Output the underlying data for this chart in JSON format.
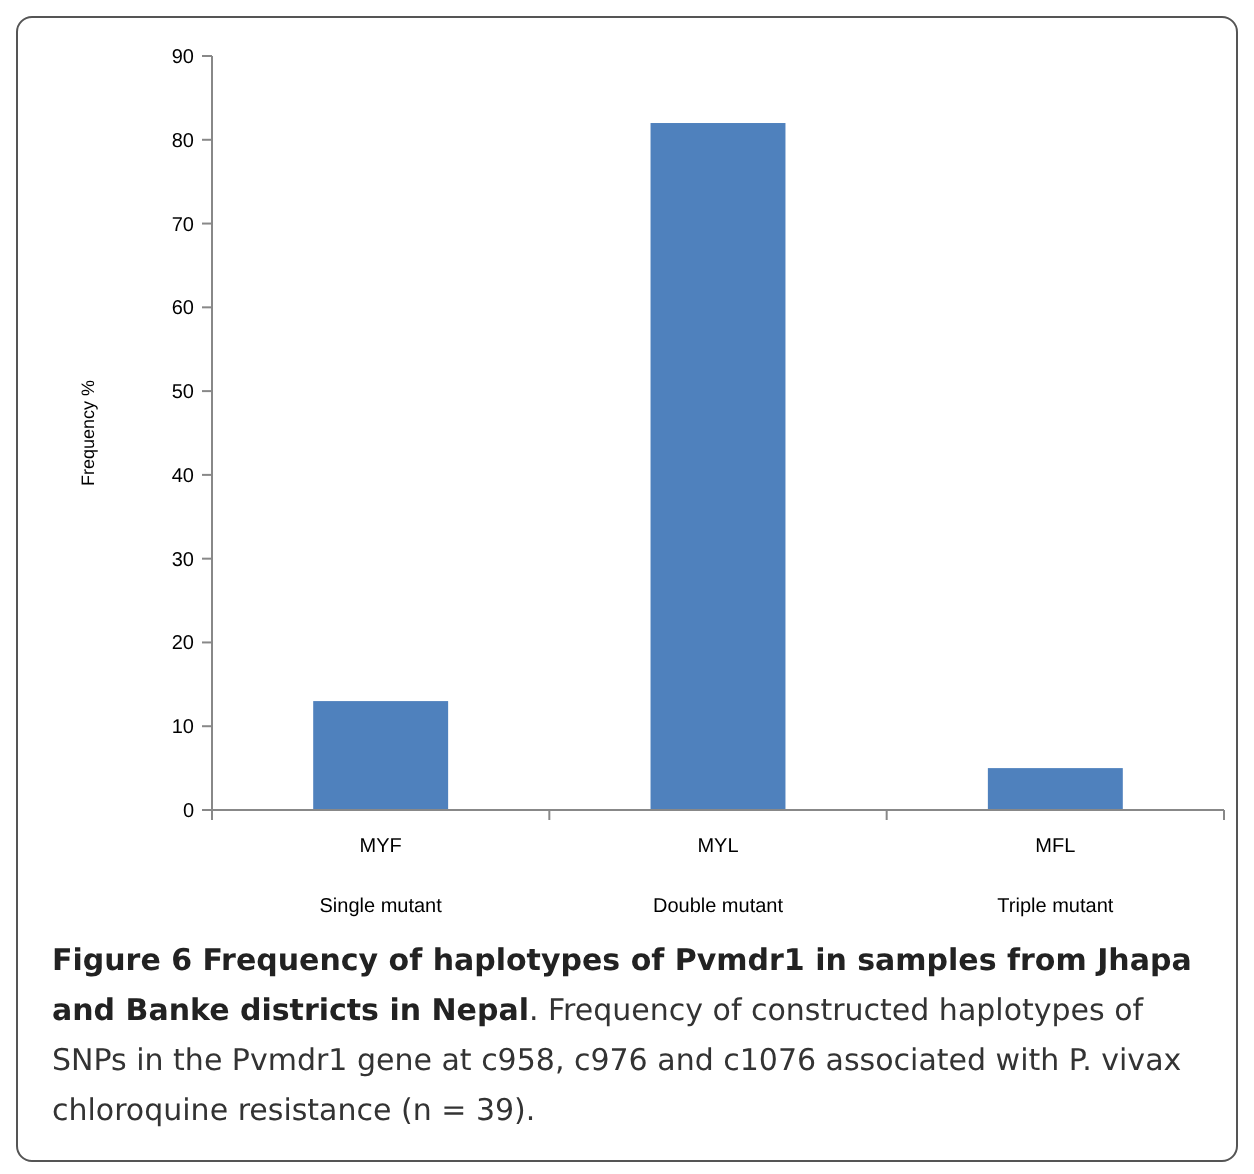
{
  "chart_data": {
    "type": "bar",
    "title": "Figure 6 Frequency of haplotypes of Pvmdr1 in samples from Jhapa and Banke districts in Nepal",
    "annotations": [
      ". Frequency of constructed haplotypes of SNPs in the Pvmdr1 gene at c958, c976 and c1076 associated with P. vivax chloroquine resistance (n = 39)."
    ],
    "ylabel": "Frequency %",
    "categories": [
      "MYF\nSingle mutant",
      "MYL\nDouble mutant",
      "MFL\nTriple mutant"
    ],
    "values": [
      13,
      82,
      5
    ],
    "color": "#4f81bd",
    "ylim": [
      0,
      90
    ],
    "yticks": [
      0,
      10,
      20,
      30,
      40,
      50,
      60,
      70,
      80,
      90
    ],
    "grid": false
  }
}
